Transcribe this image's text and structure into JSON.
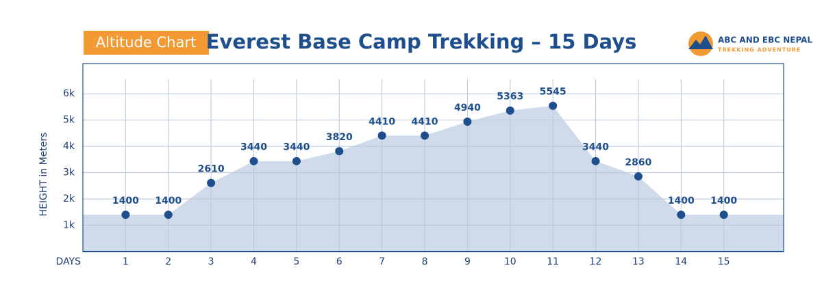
{
  "badge": "Altitude Chart",
  "logo": {
    "name": "ABC AND EBC NEPAL",
    "tagline": "TREKKING ADVENTURE"
  },
  "chart_data": {
    "type": "area",
    "title": "Everest Base Camp Trekking – 15 Days",
    "x_label": "DAYS",
    "y_label": "HEIGHT in Meters",
    "x": [
      1,
      2,
      3,
      4,
      5,
      6,
      7,
      8,
      9,
      10,
      11,
      12,
      13,
      14,
      15
    ],
    "values": [
      1400,
      1400,
      2610,
      3440,
      3440,
      3820,
      4410,
      4410,
      4940,
      5363,
      5545,
      3440,
      2860,
      1400,
      1400
    ],
    "xlim": [
      0,
      16.4
    ],
    "xticks": [
      1,
      2,
      3,
      4,
      5,
      6,
      7,
      8,
      9,
      10,
      11,
      12,
      13,
      14,
      15
    ],
    "ylim": [
      0,
      7150
    ],
    "yticks": [
      {
        "value": 1000,
        "label": "1k"
      },
      {
        "value": 2000,
        "label": "2k"
      },
      {
        "value": 3000,
        "label": "3k"
      },
      {
        "value": 4000,
        "label": "4k"
      },
      {
        "value": 5000,
        "label": "5k"
      },
      {
        "value": 6000,
        "label": "6k"
      }
    ],
    "grid": true,
    "color": "#1f4e8c",
    "fill_color": "#cfdbea"
  }
}
